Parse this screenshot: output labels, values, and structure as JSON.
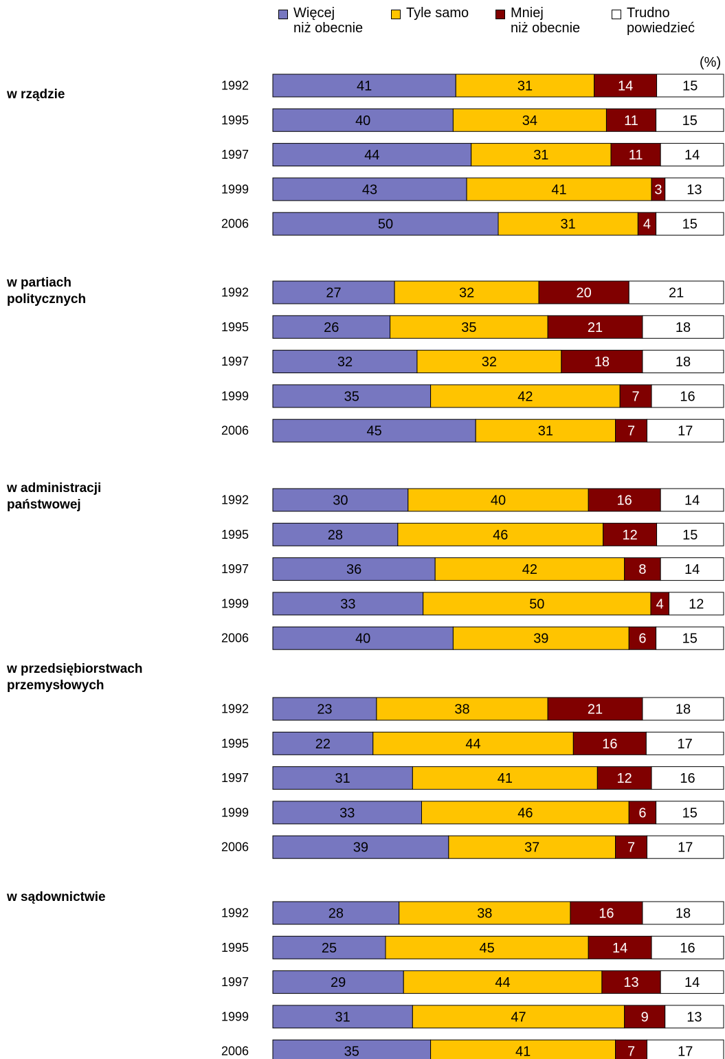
{
  "chart_data": {
    "type": "bar",
    "orientation": "horizontal-stacked-100",
    "unit_label": "(%)",
    "legend": [
      {
        "label": "Więcej\nniż obecnie",
        "color": "#7777c0"
      },
      {
        "label": "Tyle samo",
        "color": "#ffc400"
      },
      {
        "label": "Mniej\nniż obecnie",
        "color": "#800000"
      },
      {
        "label": "Trudno\npowiedzieć",
        "color": "#ffffff"
      }
    ],
    "series_colors": [
      "#7777c0",
      "#ffc400",
      "#800000",
      "#ffffff"
    ],
    "label_colors": [
      "#000000",
      "#000000",
      "#ffffff",
      "#000000"
    ],
    "groups": [
      {
        "title": "w rządzie",
        "rows": [
          {
            "year": "1992",
            "values": [
              41,
              31,
              14,
              15
            ]
          },
          {
            "year": "1995",
            "values": [
              40,
              34,
              11,
              15
            ]
          },
          {
            "year": "1997",
            "values": [
              44,
              31,
              11,
              14
            ]
          },
          {
            "year": "1999",
            "values": [
              43,
              41,
              3,
              13
            ]
          },
          {
            "year": "2006",
            "values": [
              50,
              31,
              4,
              15
            ]
          }
        ]
      },
      {
        "title": "w partiach\npolitycznych",
        "rows": [
          {
            "year": "1992",
            "values": [
              27,
              32,
              20,
              21
            ]
          },
          {
            "year": "1995",
            "values": [
              26,
              35,
              21,
              18
            ]
          },
          {
            "year": "1997",
            "values": [
              32,
              32,
              18,
              18
            ]
          },
          {
            "year": "1999",
            "values": [
              35,
              42,
              7,
              16
            ]
          },
          {
            "year": "2006",
            "values": [
              45,
              31,
              7,
              17
            ]
          }
        ]
      },
      {
        "title": "w administracji\npaństwowej",
        "rows": [
          {
            "year": "1992",
            "values": [
              30,
              40,
              16,
              14
            ]
          },
          {
            "year": "1995",
            "values": [
              28,
              46,
              12,
              15
            ]
          },
          {
            "year": "1997",
            "values": [
              36,
              42,
              8,
              14
            ]
          },
          {
            "year": "1999",
            "values": [
              33,
              50,
              4,
              12
            ]
          },
          {
            "year": "2006",
            "values": [
              40,
              39,
              6,
              15
            ]
          }
        ]
      },
      {
        "title": "w przedsiębiorstwach\nprzemysłowych",
        "rows": [
          {
            "year": "1992",
            "values": [
              23,
              38,
              21,
              18
            ]
          },
          {
            "year": "1995",
            "values": [
              22,
              44,
              16,
              17
            ]
          },
          {
            "year": "1997",
            "values": [
              31,
              41,
              12,
              16
            ]
          },
          {
            "year": "1999",
            "values": [
              33,
              46,
              6,
              15
            ]
          },
          {
            "year": "2006",
            "values": [
              39,
              37,
              7,
              17
            ]
          }
        ]
      },
      {
        "title": "w sądownictwie",
        "rows": [
          {
            "year": "1992",
            "values": [
              28,
              38,
              16,
              18
            ]
          },
          {
            "year": "1995",
            "values": [
              25,
              45,
              14,
              16
            ]
          },
          {
            "year": "1997",
            "values": [
              29,
              44,
              13,
              14
            ]
          },
          {
            "year": "1999",
            "values": [
              31,
              47,
              9,
              13
            ]
          },
          {
            "year": "2006",
            "values": [
              35,
              41,
              7,
              17
            ]
          }
        ]
      }
    ]
  }
}
